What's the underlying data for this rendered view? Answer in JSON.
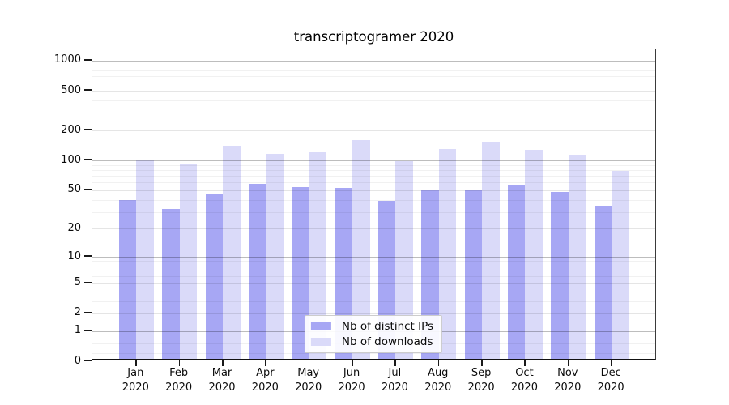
{
  "title": "transcriptogramer 2020",
  "chart_data": {
    "type": "bar",
    "title": "transcriptogramer 2020",
    "categories": [
      "Jan",
      "Feb",
      "Mar",
      "Apr",
      "May",
      "Jun",
      "Jul",
      "Aug",
      "Sep",
      "Oct",
      "Nov",
      "Dec"
    ],
    "category_year": "2020",
    "series": [
      {
        "name": "Nb of distinct IPs",
        "color": "#a7a7f4",
        "values": [
          40,
          32,
          46,
          58,
          54,
          53,
          39,
          50,
          50,
          57,
          48,
          35
        ]
      },
      {
        "name": "Nb of downloads",
        "color": "#dadaf9",
        "values": [
          101,
          92,
          140,
          116,
          120,
          160,
          98,
          130,
          154,
          129,
          115,
          78
        ]
      }
    ],
    "xlabel": "",
    "ylabel": "",
    "yscale": "log10(value+1)",
    "ylim": [
      0,
      1000
    ],
    "yticks": [
      0,
      1,
      2,
      5,
      10,
      20,
      50,
      100,
      200,
      500,
      1000
    ],
    "grid": "horizontal log gridlines with faint minors",
    "legend_position": "bottom-center inside plot"
  }
}
